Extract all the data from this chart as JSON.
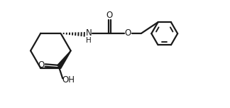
{
  "background_color": "#ffffff",
  "line_color": "#1a1a1a",
  "line_width": 1.6,
  "fig_width": 3.24,
  "fig_height": 1.52,
  "dpi": 100,
  "xlim": [
    0,
    10.5
  ],
  "ylim": [
    0,
    4.8
  ]
}
